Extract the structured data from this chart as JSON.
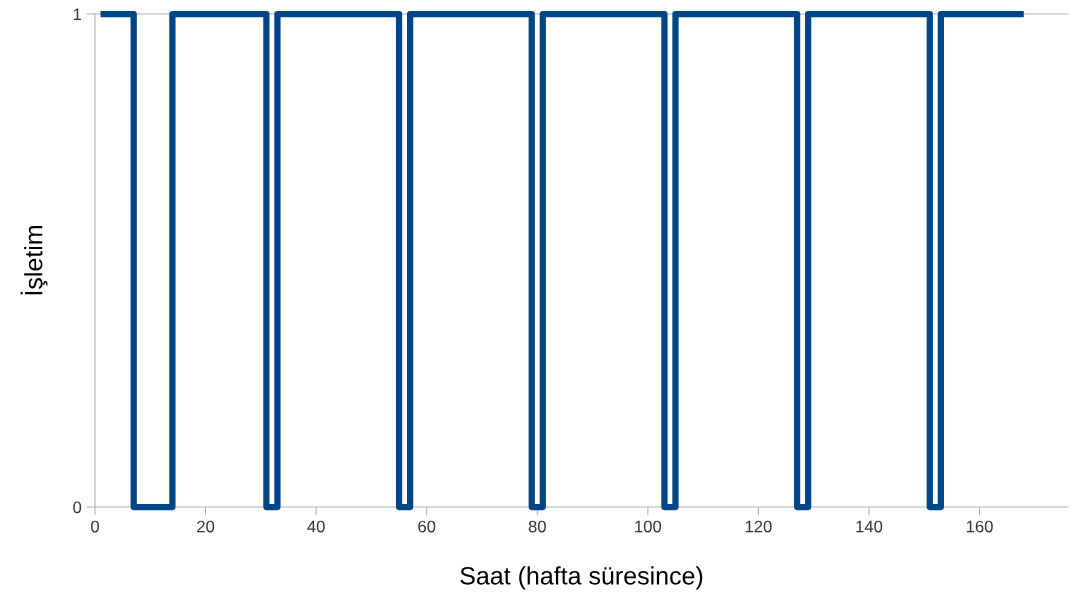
{
  "chart_data": {
    "type": "line",
    "xlabel": "Saat (hafta süresince)",
    "ylabel": "İşletim",
    "x": [
      1,
      7,
      7,
      14,
      14,
      31,
      31,
      33,
      33,
      55,
      55,
      57,
      57,
      79,
      79,
      81,
      81,
      103,
      103,
      105,
      105,
      127,
      127,
      129,
      129,
      151,
      151,
      153,
      153,
      168
    ],
    "series": [
      {
        "color": "#004586",
        "values": [
          1,
          1,
          0,
          0,
          1,
          1,
          0,
          0,
          1,
          1,
          0,
          0,
          1,
          1,
          0,
          0,
          1,
          1,
          0,
          0,
          1,
          1,
          0,
          0,
          1,
          1,
          0,
          0,
          1,
          1
        ]
      }
    ],
    "xlim": [
      0,
      176
    ],
    "xticks": [
      0,
      20,
      40,
      60,
      80,
      100,
      120,
      140,
      160
    ],
    "ylim": [
      0,
      1
    ],
    "yticks": [
      0,
      1
    ],
    "legend": false,
    "marker": "none",
    "line_style": "solid"
  }
}
